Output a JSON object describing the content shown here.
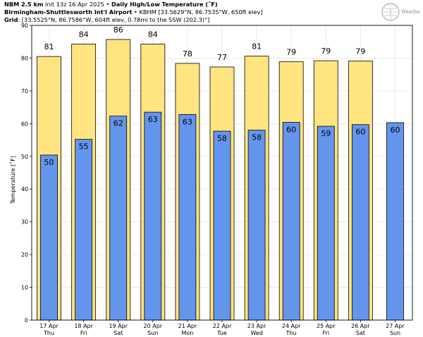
{
  "header": {
    "line1_model": "NBM 2.5 km",
    "line1_init": " Init 13z 16 Apr 2025 ",
    "line1_sep": "•",
    "line1_title": " Daily High/Low Temperature (˚F)",
    "line2_station": "Birmingham-Shuttlesworth Int'l Airport",
    "line2_sep": " •",
    "line2_details": " KBHM [33.5629°N, 86.7535°W, 650ft elev]",
    "line3_label": "Grid",
    "line3_details": ": [33.5525°N, 86.7586°W, 604ft elev, 0.78mi to the SSW (202.3)°]"
  },
  "logo": {
    "text": "WeatherBELL",
    "name": "weatherbell-logo"
  },
  "colors": {
    "high": "#ffe480",
    "low": "#6495ed",
    "grid": "#e6e6e6",
    "edge": "#000000"
  },
  "chart_data": {
    "type": "bar",
    "title": "Daily High/Low Temperature (˚F)",
    "xlabel": "",
    "ylabel": "Temperature [˚F]",
    "ylim": [
      0,
      90
    ],
    "yticks": [
      0,
      10,
      20,
      30,
      40,
      50,
      60,
      70,
      80,
      90
    ],
    "grid": true,
    "categories": [
      {
        "date": "17 Apr",
        "day": "Thu"
      },
      {
        "date": "18 Apr",
        "day": "Fri"
      },
      {
        "date": "19 Apr",
        "day": "Sat"
      },
      {
        "date": "20 Apr",
        "day": "Sun"
      },
      {
        "date": "21 Apr",
        "day": "Mon"
      },
      {
        "date": "22 Apr",
        "day": "Tue"
      },
      {
        "date": "23 Apr",
        "day": "Wed"
      },
      {
        "date": "24 Apr",
        "day": "Thu"
      },
      {
        "date": "25 Apr",
        "day": "Fri"
      },
      {
        "date": "26 Apr",
        "day": "Sat"
      },
      {
        "date": "27 Apr",
        "day": "Sun"
      }
    ],
    "series": [
      {
        "key": "high",
        "values": [
          80.5,
          84.3,
          85.7,
          84.3,
          78.4,
          77.3,
          80.6,
          78.9,
          79.2,
          79.1,
          null
        ],
        "labels": [
          "81",
          "84",
          "86",
          "84",
          "78",
          "77",
          "81",
          "79",
          "79",
          "79",
          ""
        ]
      },
      {
        "key": "low",
        "values": [
          50.4,
          55.2,
          62.3,
          63.5,
          62.8,
          57.7,
          58.0,
          60.4,
          59.2,
          59.7,
          60.3
        ],
        "labels": [
          "50",
          "55",
          "62",
          "63",
          "63",
          "58",
          "58",
          "60",
          "59",
          "60",
          "60"
        ]
      }
    ]
  }
}
